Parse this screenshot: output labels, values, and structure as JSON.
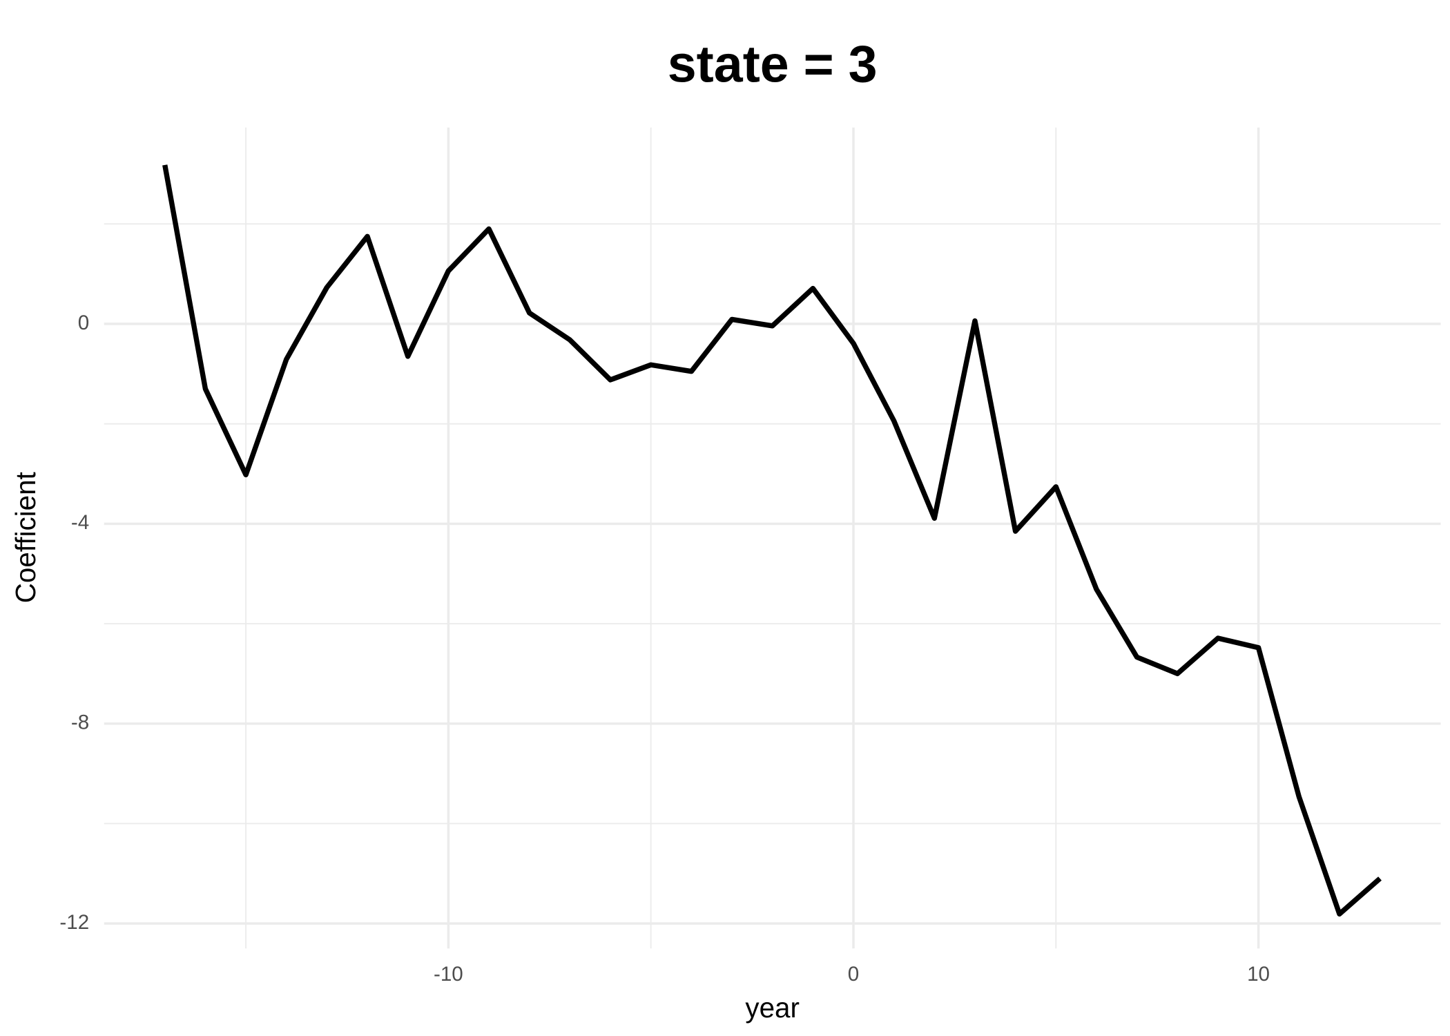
{
  "chart_data": {
    "type": "line",
    "title": "state = 3",
    "x_label": "year",
    "y_label": "Coefficient",
    "x": [
      -17,
      -16,
      -15,
      -14,
      -13,
      -12,
      -11,
      -10,
      -9,
      -8,
      -7,
      -6,
      -5,
      -4,
      -3,
      -2,
      -1,
      0,
      1,
      2,
      3,
      4,
      5,
      6,
      7,
      8,
      9,
      10,
      11,
      12,
      13
    ],
    "series": [
      {
        "name": "Coefficient",
        "color": "#000000",
        "values": [
          3.18,
          -1.3,
          -3.02,
          -0.71,
          0.73,
          1.75,
          -0.65,
          1.06,
          1.9,
          0.22,
          -0.32,
          -1.12,
          -0.82,
          -0.95,
          0.09,
          -0.04,
          0.71,
          -0.39,
          -1.94,
          -3.89,
          0.06,
          -4.15,
          -3.26,
          -5.31,
          -6.67,
          -7.0,
          -6.29,
          -6.48,
          -9.46,
          -11.81,
          -11.1
        ]
      }
    ],
    "xlim": [
      -18.5,
      14.5
    ],
    "xticks": [
      -10,
      0,
      10
    ],
    "x_minor_ticks": [
      -15,
      -5,
      5
    ],
    "ylim": [
      -12.5,
      3.93
    ],
    "yticks": [
      -12,
      -8,
      -4,
      0
    ],
    "y_minor_ticks": [
      -10,
      -6,
      -2,
      2
    ],
    "grid": true
  }
}
